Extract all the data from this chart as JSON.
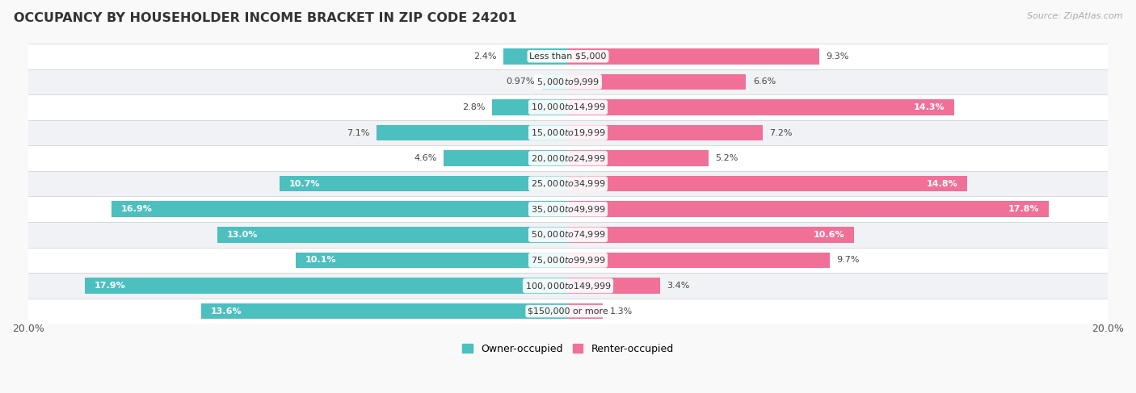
{
  "title": "OCCUPANCY BY HOUSEHOLDER INCOME BRACKET IN ZIP CODE 24201",
  "source": "Source: ZipAtlas.com",
  "categories": [
    "Less than $5,000",
    "$5,000 to $9,999",
    "$10,000 to $14,999",
    "$15,000 to $19,999",
    "$20,000 to $24,999",
    "$25,000 to $34,999",
    "$35,000 to $49,999",
    "$50,000 to $74,999",
    "$75,000 to $99,999",
    "$100,000 to $149,999",
    "$150,000 or more"
  ],
  "owner_values": [
    2.4,
    0.97,
    2.8,
    7.1,
    4.6,
    10.7,
    16.9,
    13.0,
    10.1,
    17.9,
    13.6
  ],
  "renter_values": [
    9.3,
    6.6,
    14.3,
    7.2,
    5.2,
    14.8,
    17.8,
    10.6,
    9.7,
    3.4,
    1.3
  ],
  "owner_color": "#4CBFBF",
  "renter_color": "#F07098",
  "bar_height": 0.62,
  "background_color": "#f9f9f9",
  "row_bg_even": "#f0f2f5",
  "row_bg_odd": "#ffffff",
  "xlim": 20.0,
  "title_fontsize": 11.5,
  "label_fontsize": 8,
  "source_fontsize": 8,
  "legend_fontsize": 9,
  "category_fontsize": 8
}
